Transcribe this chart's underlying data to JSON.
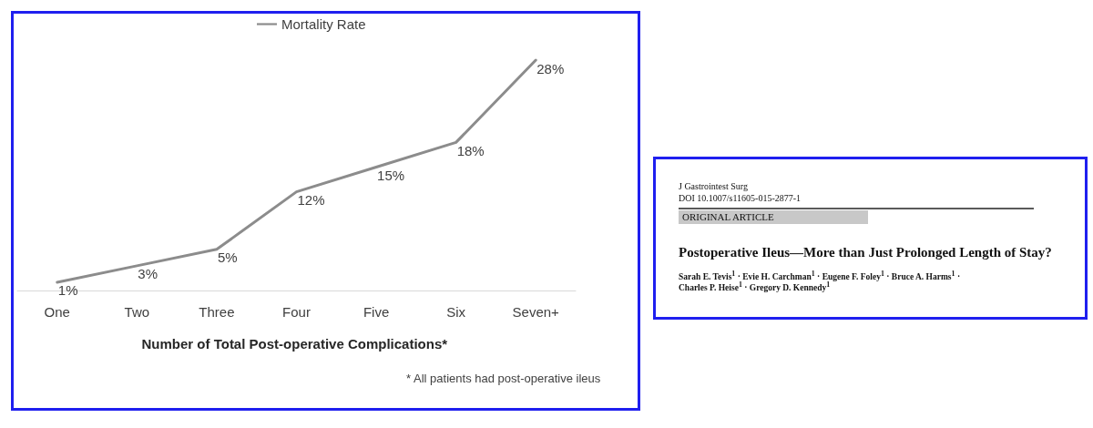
{
  "chart_data": [
    {
      "type": "line",
      "categories": [
        "One",
        "Two",
        "Three",
        "Four",
        "Five",
        "Six",
        "Seven+"
      ],
      "series": [
        {
          "name": "Mortality Rate",
          "color": "#8c8c8c",
          "values": [
            1,
            3,
            5,
            12,
            15,
            18,
            28
          ],
          "value_labels": [
            "1%",
            "3%",
            "5%",
            "12%",
            "15%",
            "18%",
            "28%"
          ]
        }
      ],
      "xlabel": "Number of Total Post-operative Complications*",
      "annotations": [
        "* All patients had post-operative ileus"
      ],
      "legend": "top",
      "tick_labels": "x",
      "marker": "none"
    },
    {
      "type": "other",
      "title": "Postoperative Ileus—More than Just Prolonged Length of Stay?",
      "annotations": [
        "J Gastrointest Surg",
        "DOI 10.1007/s11605-015-2877-1",
        "ORIGINAL ARTICLE",
        "Sarah E. Tevis$^{1}$ · Evie H. Carchman$^{1}$ · Eugene F. Foley$^{1}$ · Bruce A. Harms$^{1}$ ·",
        "Charles P. Heise$^{1}$ · Gregory D. Kennedy$^{1}$"
      ]
    }
  ]
}
